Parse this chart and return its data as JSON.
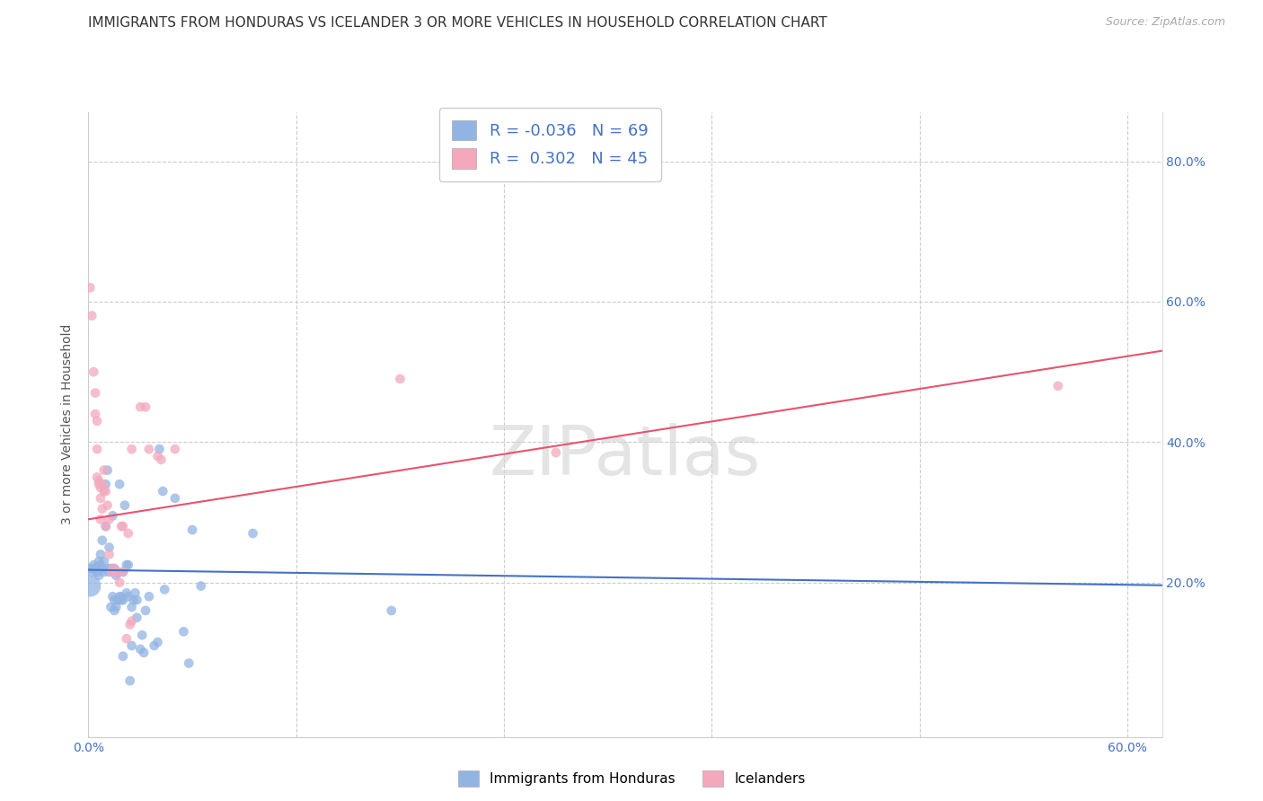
{
  "title": "IMMIGRANTS FROM HONDURAS VS ICELANDER 3 OR MORE VEHICLES IN HOUSEHOLD CORRELATION CHART",
  "source": "Source: ZipAtlas.com",
  "ylabel": "3 or more Vehicles in Household",
  "xlim": [
    0.0,
    0.62
  ],
  "ylim": [
    -0.02,
    0.87
  ],
  "xtick_positions": [
    0.0,
    0.12,
    0.24,
    0.36,
    0.48,
    0.6
  ],
  "xtick_labels": [
    "0.0%",
    "",
    "",
    "",
    "",
    "60.0%"
  ],
  "ytick_positions": [
    0.2,
    0.4,
    0.6,
    0.8
  ],
  "ytick_labels": [
    "20.0%",
    "40.0%",
    "60.0%",
    "80.0%"
  ],
  "legend_label1": "Immigrants from Honduras",
  "legend_label2": "Icelanders",
  "r1": "-0.036",
  "n1": "69",
  "r2": "0.302",
  "n2": "45",
  "color_blue": "#92b4e3",
  "color_pink": "#f4a8bc",
  "color_line_blue": "#4472c4",
  "color_line_pink": "#e8536e",
  "watermark": "ZIPatlas",
  "blue_points_x": [
    0.001,
    0.002,
    0.003,
    0.003,
    0.004,
    0.005,
    0.005,
    0.006,
    0.006,
    0.007,
    0.007,
    0.008,
    0.008,
    0.009,
    0.009,
    0.01,
    0.01,
    0.011,
    0.011,
    0.012,
    0.012,
    0.013,
    0.013,
    0.014,
    0.014,
    0.015,
    0.015,
    0.015,
    0.016,
    0.016,
    0.017,
    0.017,
    0.018,
    0.018,
    0.019,
    0.019,
    0.02,
    0.02,
    0.02,
    0.021,
    0.022,
    0.022,
    0.023,
    0.023,
    0.024,
    0.025,
    0.025,
    0.026,
    0.027,
    0.028,
    0.028,
    0.03,
    0.031,
    0.032,
    0.033,
    0.035,
    0.038,
    0.04,
    0.041,
    0.043,
    0.044,
    0.05,
    0.055,
    0.058,
    0.06,
    0.065,
    0.095,
    0.175,
    0.001
  ],
  "blue_points_y": [
    0.22,
    0.215,
    0.22,
    0.225,
    0.218,
    0.222,
    0.215,
    0.23,
    0.21,
    0.225,
    0.24,
    0.22,
    0.26,
    0.215,
    0.23,
    0.28,
    0.34,
    0.22,
    0.36,
    0.215,
    0.25,
    0.22,
    0.165,
    0.18,
    0.295,
    0.22,
    0.175,
    0.16,
    0.21,
    0.165,
    0.175,
    0.215,
    0.18,
    0.34,
    0.175,
    0.18,
    0.215,
    0.175,
    0.095,
    0.31,
    0.185,
    0.225,
    0.225,
    0.18,
    0.06,
    0.165,
    0.11,
    0.175,
    0.185,
    0.175,
    0.15,
    0.105,
    0.125,
    0.1,
    0.16,
    0.18,
    0.11,
    0.115,
    0.39,
    0.33,
    0.19,
    0.32,
    0.13,
    0.085,
    0.275,
    0.195,
    0.27,
    0.16,
    0.195
  ],
  "blue_sizes": [
    60,
    60,
    60,
    60,
    60,
    60,
    60,
    60,
    60,
    60,
    60,
    60,
    60,
    60,
    60,
    60,
    60,
    60,
    60,
    60,
    60,
    60,
    60,
    60,
    60,
    60,
    60,
    60,
    60,
    60,
    60,
    60,
    60,
    60,
    60,
    60,
    60,
    60,
    60,
    60,
    60,
    60,
    60,
    60,
    60,
    60,
    60,
    60,
    60,
    60,
    60,
    60,
    60,
    60,
    60,
    60,
    60,
    60,
    60,
    60,
    60,
    60,
    60,
    60,
    60,
    60,
    60,
    60,
    300
  ],
  "pink_points_x": [
    0.001,
    0.002,
    0.003,
    0.004,
    0.004,
    0.005,
    0.005,
    0.005,
    0.006,
    0.006,
    0.007,
    0.007,
    0.007,
    0.008,
    0.008,
    0.009,
    0.009,
    0.01,
    0.01,
    0.011,
    0.012,
    0.012,
    0.013,
    0.014,
    0.015,
    0.016,
    0.017,
    0.018,
    0.019,
    0.02,
    0.02,
    0.022,
    0.023,
    0.024,
    0.025,
    0.025,
    0.03,
    0.033,
    0.035,
    0.04,
    0.042,
    0.05,
    0.18,
    0.27,
    0.56
  ],
  "pink_points_y": [
    0.62,
    0.58,
    0.5,
    0.47,
    0.44,
    0.43,
    0.39,
    0.35,
    0.345,
    0.34,
    0.32,
    0.335,
    0.29,
    0.305,
    0.34,
    0.36,
    0.33,
    0.33,
    0.28,
    0.31,
    0.29,
    0.24,
    0.215,
    0.22,
    0.215,
    0.215,
    0.215,
    0.2,
    0.28,
    0.28,
    0.215,
    0.12,
    0.27,
    0.14,
    0.39,
    0.145,
    0.45,
    0.45,
    0.39,
    0.38,
    0.375,
    0.39,
    0.49,
    0.385,
    0.48
  ],
  "pink_sizes": [
    60,
    60,
    60,
    60,
    60,
    60,
    60,
    60,
    60,
    60,
    60,
    60,
    60,
    60,
    60,
    60,
    60,
    60,
    60,
    60,
    60,
    60,
    60,
    60,
    60,
    60,
    60,
    60,
    60,
    60,
    60,
    60,
    60,
    60,
    60,
    60,
    60,
    60,
    60,
    60,
    60,
    60,
    60,
    60,
    60
  ],
  "blue_trend_x": [
    0.0,
    0.62
  ],
  "blue_trend_y": [
    0.218,
    0.196
  ],
  "pink_trend_x": [
    0.0,
    0.62
  ],
  "pink_trend_y": [
    0.29,
    0.53
  ],
  "background_color": "#ffffff",
  "grid_color": "#cccccc",
  "title_fontsize": 11,
  "axis_label_fontsize": 10,
  "tick_fontsize": 10,
  "tick_color": "#4472c4",
  "legend_fontsize": 12
}
